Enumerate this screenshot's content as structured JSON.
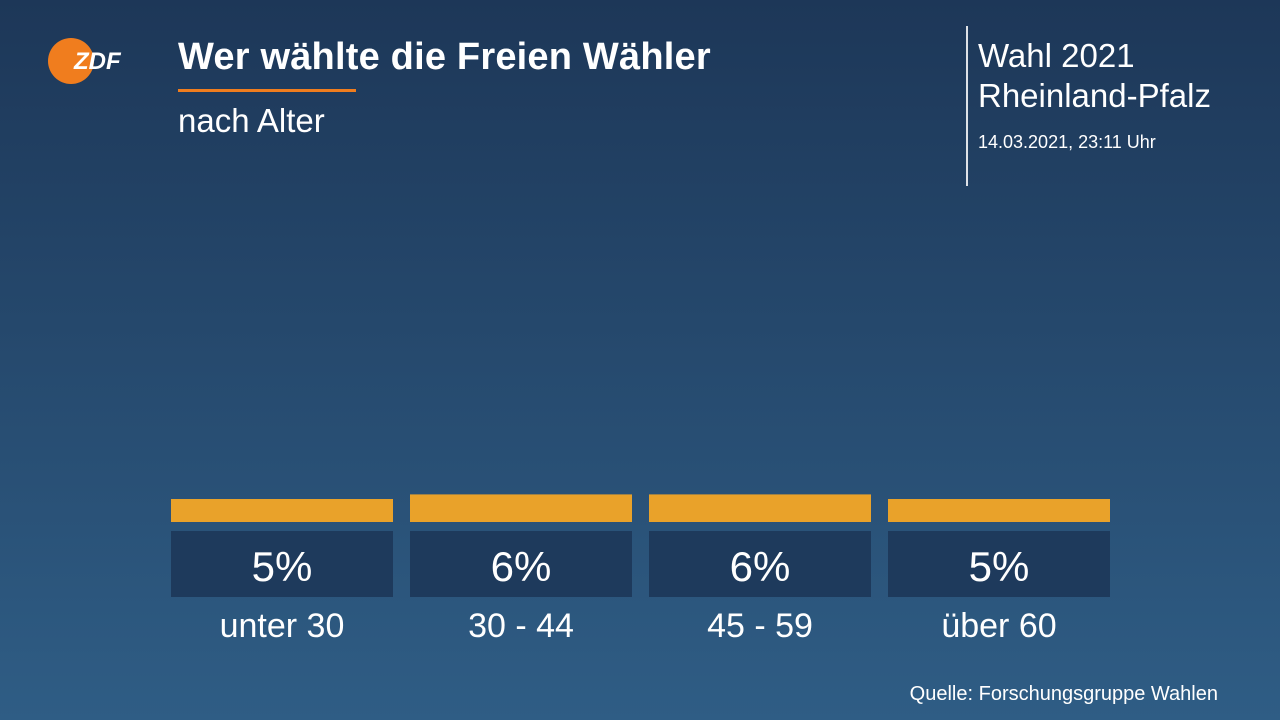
{
  "header": {
    "title": "Wer wählte die Freien Wähler",
    "subtitle": "nach Alter",
    "election_line1": "Wahl 2021",
    "election_line2": "Rheinland-Pfalz",
    "timestamp": "14.03.2021, 23:11 Uhr",
    "logo_text": "ZDF"
  },
  "footer": {
    "source": "Quelle: Forschungsgruppe Wahlen"
  },
  "colors": {
    "bar": "#e9a22a",
    "label_box": "#1e3a5c",
    "accent": "#f07d1e",
    "logo": "#f07d1e"
  },
  "chart_data": {
    "type": "bar",
    "title": "Wer wählte die Freien Wähler",
    "subtitle": "nach Alter",
    "categories": [
      "unter 30",
      "30 - 44",
      "45 - 59",
      "über 60"
    ],
    "values": [
      5,
      6,
      6,
      5
    ],
    "value_labels": [
      "5%",
      "6%",
      "6%",
      "5%"
    ],
    "unit": "%",
    "xlabel": "",
    "ylabel": "",
    "ylim": [
      0,
      100
    ],
    "grid": false
  }
}
